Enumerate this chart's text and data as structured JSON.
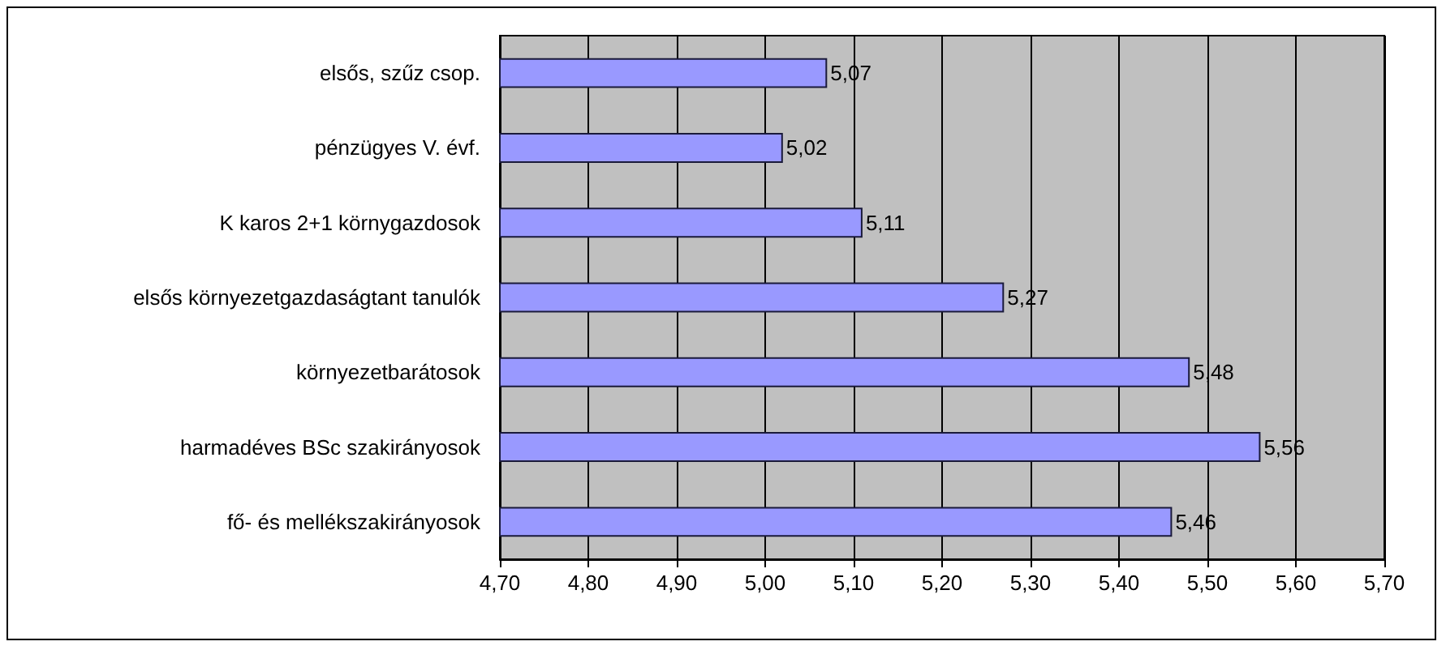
{
  "chart_data": {
    "type": "bar",
    "orientation": "horizontal",
    "categories": [
      "elsős, szűz csop.",
      "pénzügyes V. évf.",
      "K karos 2+1 környgazdosok",
      "elsős környezetgazdaságtant tanulók",
      "környezetbarátosok",
      "harmadéves BSc szakirányosok",
      "fő- és mellékszakirányosok"
    ],
    "values": [
      5.07,
      5.02,
      5.11,
      5.27,
      5.48,
      5.56,
      5.46
    ],
    "value_labels": [
      "5,07",
      "5,02",
      "5,11",
      "5,27",
      "5,48",
      "5,56",
      "5,46"
    ],
    "color": "#9999ff",
    "xlim": [
      4.7,
      5.7
    ],
    "xticks": [
      {
        "value": 4.7,
        "label": "4,70"
      },
      {
        "value": 4.8,
        "label": "4,80"
      },
      {
        "value": 4.9,
        "label": "4,90"
      },
      {
        "value": 5.0,
        "label": "5,00"
      },
      {
        "value": 5.1,
        "label": "5,10"
      },
      {
        "value": 5.2,
        "label": "5,20"
      },
      {
        "value": 5.3,
        "label": "5,30"
      },
      {
        "value": 5.4,
        "label": "5,40"
      },
      {
        "value": 5.5,
        "label": "5,50"
      },
      {
        "value": 5.6,
        "label": "5,60"
      },
      {
        "value": 5.7,
        "label": "5,70"
      }
    ],
    "grid": "x"
  }
}
